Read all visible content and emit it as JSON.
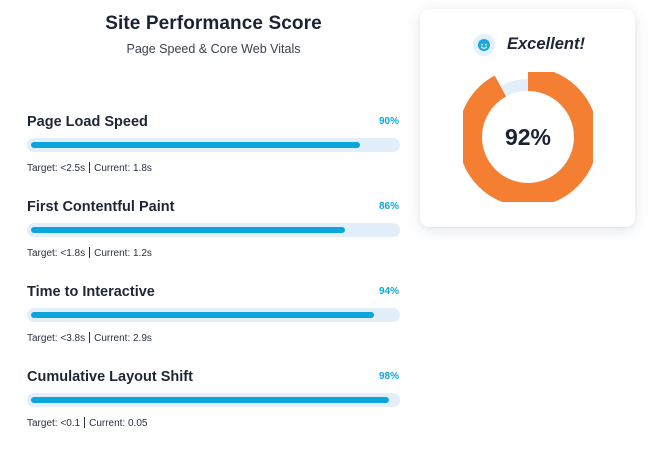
{
  "header": {
    "title": "Site Performance Score",
    "subtitle": "Page Speed & Core Web Vitals"
  },
  "metrics": [
    {
      "name": "Page Load Speed",
      "percent_label": "90%",
      "percent": 90,
      "target": "Target: <2.5s",
      "current": "Current: 1.8s"
    },
    {
      "name": "First Contentful Paint",
      "percent_label": "86%",
      "percent": 86,
      "target": "Target: <1.8s",
      "current": "Current: 1.2s"
    },
    {
      "name": "Time to Interactive",
      "percent_label": "94%",
      "percent": 94,
      "target": "Target: <3.8s",
      "current": "Current: 2.9s"
    },
    {
      "name": "Cumulative Layout Shift",
      "percent_label": "98%",
      "percent": 98,
      "target": "Target: <0.1",
      "current": "Current: 0.05"
    }
  ],
  "score_card": {
    "rating": "Excellent!",
    "rating_icon": "smiley-face-icon",
    "score_label": "92%",
    "score": 92
  },
  "colors": {
    "accent_blue": "#0ba5dc",
    "bar_track": "#e3eefb",
    "donut_orange": "#f47f33",
    "donut_track": "#e2eefa",
    "text_dark": "#1a2233"
  }
}
